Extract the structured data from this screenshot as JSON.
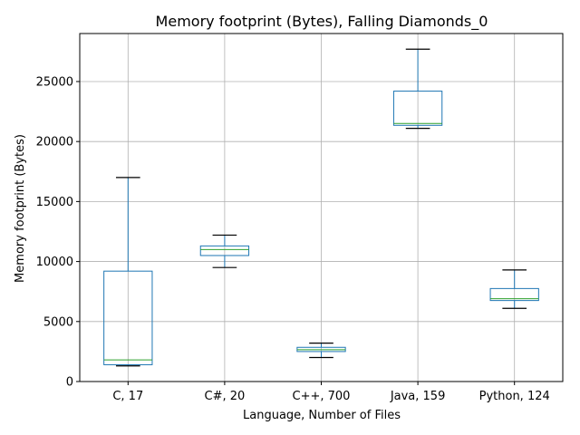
{
  "chart_data": {
    "type": "box",
    "title": "Memory footprint (Bytes), Falling Diamonds_0",
    "xlabel": "Language, Number of Files",
    "ylabel": "Memory footprint (Bytes)",
    "ylim": [
      0,
      29000
    ],
    "yticks": [
      0,
      5000,
      10000,
      15000,
      20000,
      25000
    ],
    "grid": true,
    "colors": {
      "box": "#1f77b4",
      "median": "#2ca02c",
      "whisker_cap": "#000000",
      "grid": "#b0b0b0"
    },
    "categories": [
      "C, 17",
      "C#, 20",
      "C++, 700",
      "Java, 159",
      "Python, 124"
    ],
    "boxes": [
      {
        "category": "C, 17",
        "whislo": 1300,
        "q1": 1400,
        "med": 1800,
        "q3": 9200,
        "whishi": 17000
      },
      {
        "category": "C#, 20",
        "whislo": 9500,
        "q1": 10500,
        "med": 11000,
        "q3": 11300,
        "whishi": 12200
      },
      {
        "category": "C++, 700",
        "whislo": 2000,
        "q1": 2500,
        "med": 2650,
        "q3": 2850,
        "whishi": 3200
      },
      {
        "category": "Java, 159",
        "whislo": 21100,
        "q1": 21350,
        "med": 21500,
        "q3": 24200,
        "whishi": 27700
      },
      {
        "category": "Python, 124",
        "whislo": 6100,
        "q1": 6750,
        "med": 6900,
        "q3": 7750,
        "whishi": 9300
      }
    ]
  }
}
